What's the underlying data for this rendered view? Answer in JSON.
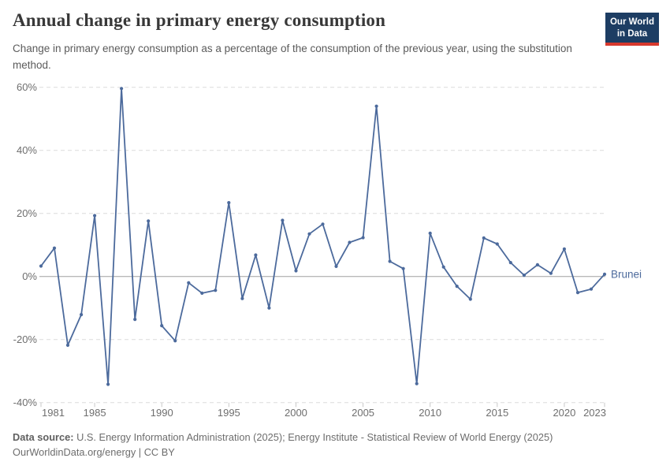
{
  "header": {
    "title": "Annual change in primary energy consumption",
    "subtitle": "Change in primary energy consumption as a percentage of the consumption of the previous year, using the substitution method.",
    "logo": {
      "line1": "Our World",
      "line2": "in Data"
    }
  },
  "chart_data": {
    "type": "line",
    "title": "Annual change in primary energy consumption",
    "entity": "Brunei",
    "unit": "%",
    "x": [
      1981,
      1982,
      1983,
      1984,
      1985,
      1986,
      1987,
      1988,
      1989,
      1990,
      1991,
      1992,
      1993,
      1994,
      1995,
      1996,
      1997,
      1998,
      1999,
      2000,
      2001,
      2002,
      2003,
      2004,
      2005,
      2006,
      2007,
      2008,
      2009,
      2010,
      2011,
      2012,
      2013,
      2014,
      2015,
      2016,
      2017,
      2018,
      2019,
      2020,
      2021,
      2022,
      2023
    ],
    "values": [
      3.3,
      9.0,
      -21.8,
      -12.1,
      19.3,
      -34.2,
      59.6,
      -13.6,
      17.6,
      -15.6,
      -20.4,
      -2.0,
      -5.3,
      -4.4,
      23.4,
      -7.0,
      6.8,
      -10.0,
      17.8,
      1.8,
      13.5,
      16.6,
      3.2,
      10.8,
      12.3,
      54.0,
      4.8,
      2.5,
      -34.0,
      13.7,
      3.0,
      -3.1,
      -7.2,
      12.2,
      10.3,
      4.4,
      0.4,
      3.7,
      1.0,
      8.7,
      -5.1,
      -4.0,
      0.7
    ],
    "x_range": [
      1981,
      2023
    ],
    "y_range": [
      -40,
      60
    ],
    "x_ticks": [
      1981,
      1985,
      1990,
      1995,
      2000,
      2005,
      2010,
      2015,
      2020,
      2023
    ],
    "y_ticks": [
      60,
      40,
      20,
      0,
      -20,
      -40
    ],
    "grid": true,
    "legend_position": "end-of-line-label"
  },
  "footer": {
    "source_label": "Data source:",
    "source_text": " U.S. Energy Information Administration (2025); Energy Institute - Statistical Review of World Energy (2025)",
    "url": "OurWorldinData.org/energy",
    "separator": " | ",
    "license": "CC BY"
  },
  "colors": {
    "line": "#4c6a9c",
    "entity_label": "#4c6a9c",
    "grid": "#dcdcdc",
    "zero_line": "#a0a0a0",
    "tick_text": "#6e6e6e",
    "logo_bg": "#1d3d63",
    "logo_red": "#d7382d"
  }
}
